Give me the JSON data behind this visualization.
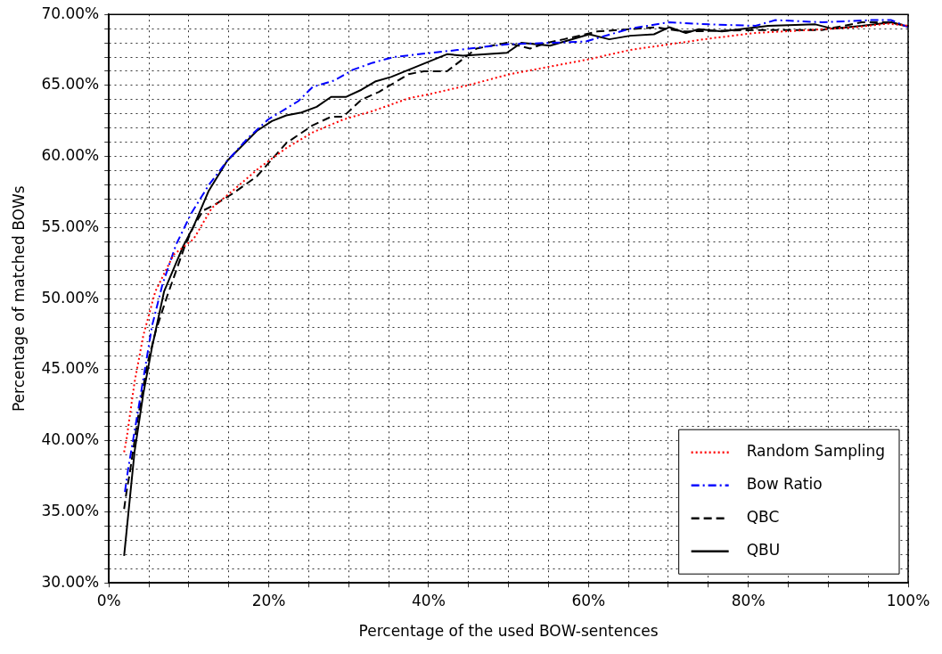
{
  "chart_data": {
    "type": "line",
    "xlabel": "Percentage of the used BOW-sentences",
    "ylabel": "Percentage of matched BOWs",
    "xlim": [
      0,
      100
    ],
    "ylim": [
      30,
      70
    ],
    "xticks": [
      {
        "value": 0,
        "label": "0%"
      },
      {
        "value": 5,
        "label": null
      },
      {
        "value": 10,
        "label": null
      },
      {
        "value": 15,
        "label": null
      },
      {
        "value": 20,
        "label": "20%"
      },
      {
        "value": 25,
        "label": null
      },
      {
        "value": 30,
        "label": null
      },
      {
        "value": 35,
        "label": null
      },
      {
        "value": 40,
        "label": "40%"
      },
      {
        "value": 45,
        "label": null
      },
      {
        "value": 50,
        "label": null
      },
      {
        "value": 55,
        "label": null
      },
      {
        "value": 60,
        "label": "60%"
      },
      {
        "value": 65,
        "label": null
      },
      {
        "value": 70,
        "label": null
      },
      {
        "value": 75,
        "label": null
      },
      {
        "value": 80,
        "label": "80%"
      },
      {
        "value": 85,
        "label": null
      },
      {
        "value": 90,
        "label": null
      },
      {
        "value": 95,
        "label": null
      },
      {
        "value": 100,
        "label": "100%"
      }
    ],
    "yticks": [
      {
        "value": 30,
        "label": "30.00%"
      },
      {
        "value": 31,
        "label": null
      },
      {
        "value": 32,
        "label": null
      },
      {
        "value": 33,
        "label": null
      },
      {
        "value": 34,
        "label": null
      },
      {
        "value": 35,
        "label": "35.00%"
      },
      {
        "value": 36,
        "label": null
      },
      {
        "value": 37,
        "label": null
      },
      {
        "value": 38,
        "label": null
      },
      {
        "value": 39,
        "label": null
      },
      {
        "value": 40,
        "label": "40.00%"
      },
      {
        "value": 41,
        "label": null
      },
      {
        "value": 42,
        "label": null
      },
      {
        "value": 43,
        "label": null
      },
      {
        "value": 44,
        "label": null
      },
      {
        "value": 45,
        "label": "45.00%"
      },
      {
        "value": 46,
        "label": null
      },
      {
        "value": 47,
        "label": null
      },
      {
        "value": 48,
        "label": null
      },
      {
        "value": 49,
        "label": null
      },
      {
        "value": 50,
        "label": "50.00%"
      },
      {
        "value": 51,
        "label": null
      },
      {
        "value": 52,
        "label": null
      },
      {
        "value": 53,
        "label": null
      },
      {
        "value": 54,
        "label": null
      },
      {
        "value": 55,
        "label": "55.00%"
      },
      {
        "value": 56,
        "label": null
      },
      {
        "value": 57,
        "label": null
      },
      {
        "value": 58,
        "label": null
      },
      {
        "value": 59,
        "label": null
      },
      {
        "value": 60,
        "label": "60.00%"
      },
      {
        "value": 61,
        "label": null
      },
      {
        "value": 62,
        "label": null
      },
      {
        "value": 63,
        "label": null
      },
      {
        "value": 64,
        "label": null
      },
      {
        "value": 65,
        "label": "65.00%"
      },
      {
        "value": 66,
        "label": null
      },
      {
        "value": 67,
        "label": null
      },
      {
        "value": 68,
        "label": null
      },
      {
        "value": 69,
        "label": null
      },
      {
        "value": 70,
        "label": "70.00%"
      }
    ],
    "grid": true,
    "legend": "bottom right",
    "marker": "none",
    "series": [
      {
        "name": "Random Sampling",
        "color": "#ff0000",
        "line_style": "dotted",
        "x": [
          1.9,
          2.2,
          3.2,
          4.3,
          5.8,
          8.1,
          10.6,
          12.9,
          15.5,
          18.8,
          22.2,
          25.5,
          29.3,
          33,
          37.5,
          40.2,
          44.8,
          50.2,
          60.1,
          65.2,
          70.1,
          75.1,
          80.9,
          87.6,
          93.4,
          97.4,
          100
        ],
        "values": [
          39.2,
          40.1,
          44.1,
          47.4,
          50.5,
          53.1,
          54.2,
          56.4,
          57.6,
          59.2,
          60.6,
          61.7,
          62.6,
          63.2,
          64.1,
          64.4,
          65,
          65.8,
          66.85,
          67.5,
          67.9,
          68.3,
          68.7,
          68.9,
          69.1,
          69.35,
          69.2
        ]
      },
      {
        "name": "Bow Ratio",
        "color": "#0000ff",
        "line_style": "dashdot",
        "x": [
          2,
          2.4,
          3.7,
          5.4,
          6.7,
          8.4,
          10.3,
          12.5,
          14.8,
          17.4,
          19.9,
          23.7,
          25.5,
          28.2,
          30.5,
          33,
          35.6,
          43.6,
          49.8,
          55.2,
          59.7,
          65.2,
          70.1,
          75.1,
          80.9,
          83.4,
          89.2,
          95.4,
          97.9,
          100
        ],
        "values": [
          36.4,
          38,
          42.3,
          48.1,
          51,
          53.8,
          56,
          58,
          59.7,
          61.3,
          62.6,
          63.9,
          64.9,
          65.35,
          66.1,
          66.6,
          67,
          67.5,
          67.9,
          68,
          68.1,
          69,
          69.45,
          69.3,
          69.2,
          69.6,
          69.45,
          69.6,
          69.6,
          69.1
        ]
      },
      {
        "name": "QBC",
        "color": "#000000",
        "line_style": "dashed",
        "x": [
          1.9,
          2.2,
          2.6,
          3.6,
          4.8,
          5.9,
          7.3,
          9.5,
          10.6,
          11.8,
          13.2,
          15.5,
          18.5,
          22.2,
          25.5,
          27.8,
          29.3,
          31.6,
          33.8,
          37.5,
          39.4,
          42.3,
          46,
          49.8,
          52.7,
          54.8,
          56.9,
          61.1,
          68.5,
          71.8,
          80.9,
          89.2,
          94.2,
          97.4,
          100
        ],
        "values": [
          35.2,
          36.4,
          37.7,
          41.5,
          45.4,
          47.8,
          50.2,
          53.7,
          55.1,
          56.2,
          56.6,
          57.4,
          58.6,
          60.95,
          62.2,
          62.8,
          62.8,
          64,
          64.55,
          65.8,
          66,
          66,
          67.6,
          68,
          67.6,
          68,
          68.25,
          68.8,
          69.1,
          68.8,
          68.9,
          68.9,
          69.45,
          69.45,
          69.2
        ]
      },
      {
        "name": "QBU",
        "color": "#000000",
        "line_style": "solid",
        "x": [
          1.9,
          3.2,
          4.3,
          5.4,
          6.9,
          9.3,
          10.6,
          12.5,
          14.8,
          18.5,
          20.4,
          22.2,
          24.1,
          26,
          27.8,
          29.7,
          31.6,
          33.4,
          35.3,
          37.5,
          42.3,
          44.3,
          49.8,
          51.6,
          55.2,
          60.1,
          62.6,
          65.2,
          68.2,
          70.1,
          72.2,
          73.8,
          76.7,
          82.5,
          88.4,
          90.5,
          94.2,
          97.9,
          99.6
        ],
        "values": [
          31.9,
          39.2,
          43.3,
          46.6,
          50.5,
          53.7,
          55.1,
          57.6,
          59.7,
          61.8,
          62.5,
          62.9,
          63.1,
          63.5,
          64.2,
          64.2,
          64.7,
          65.3,
          65.6,
          66.1,
          67.2,
          67.1,
          67.3,
          68,
          67.8,
          68.6,
          68.25,
          68.5,
          68.6,
          69.1,
          68.7,
          68.96,
          68.8,
          69.2,
          69.3,
          69,
          69.2,
          69.45,
          69.2
        ]
      }
    ]
  }
}
